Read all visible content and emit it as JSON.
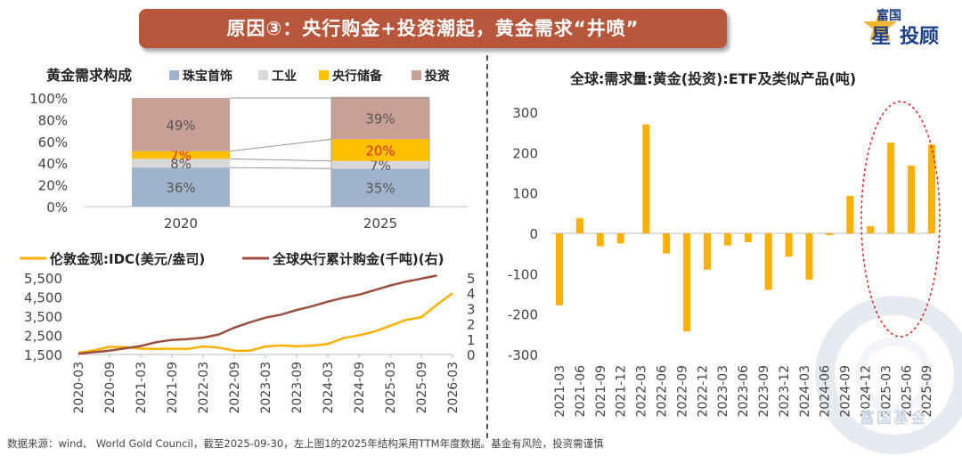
{
  "banner": {
    "title": "原因③：央行购金+投资潮起，黄金需求“井喷”"
  },
  "logo": {
    "line1": "富国",
    "line2a": "星",
    "line2b": "投顾"
  },
  "watermark": {
    "text": "富国基金"
  },
  "footer": {
    "text": "数据来源：wind、 World Gold Council，截至2025-09-30，左上图1的2025年结构采用TTM年度数据。基金有风险，投资需谨慎"
  },
  "colors": {
    "banner": "#b8563b",
    "jewelry": "#9fb4cc",
    "industry": "#d9d9d9",
    "central_bank": "#ffc000",
    "investment": "#c9a096",
    "gold_price": "#ffb000",
    "cb_cumulative": "#9b4f3d",
    "etf": "#ffb000",
    "highlight": "#e02020"
  },
  "chart_data": [
    {
      "id": "demand-structure",
      "type": "bar",
      "stacked": true,
      "title": "黄金需求构成",
      "categories": [
        "2020",
        "2025"
      ],
      "series": [
        {
          "name": "珠宝首饰",
          "values": [
            36,
            35
          ],
          "labels": [
            "36%",
            "35%"
          ]
        },
        {
          "name": "工业",
          "values": [
            8,
            7
          ],
          "labels": [
            "8%",
            "7%"
          ]
        },
        {
          "name": "央行储备",
          "values": [
            7,
            20
          ],
          "labels": [
            "7%",
            "20%"
          ]
        },
        {
          "name": "投资",
          "values": [
            49,
            39
          ],
          "labels": [
            "49%",
            "39%"
          ]
        }
      ],
      "yticks": [
        "0%",
        "20%",
        "40%",
        "60%",
        "80%",
        "100%"
      ],
      "ylim": [
        0,
        100
      ]
    },
    {
      "id": "price-vs-cb",
      "type": "line",
      "legend": [
        "伦敦金现:IDC(美元/盎司)",
        "全球央行累计购金(千吨)(右)"
      ],
      "x": [
        "2020-03",
        "2020-09",
        "2021-03",
        "2021-09",
        "2022-03",
        "2022-09",
        "2023-03",
        "2023-09",
        "2024-03",
        "2024-09",
        "2025-03",
        "2025-09",
        "2026-03"
      ],
      "left_axis": {
        "ticks": [
          "1,500",
          "2,500",
          "3,500",
          "4,500",
          "5,500"
        ],
        "range": [
          1500,
          5500
        ]
      },
      "right_axis": {
        "ticks": [
          "0",
          "1",
          "2",
          "3",
          "4",
          "5"
        ],
        "range": [
          0,
          5
        ]
      },
      "series": [
        {
          "name": "伦敦金现:IDC(美元/盎司)",
          "axis": "left",
          "points": [
            [
              0,
              1590
            ],
            [
              0.5,
              1720
            ],
            [
              1,
              1900
            ],
            [
              1.5,
              1880
            ],
            [
              2,
              1800
            ],
            [
              2.5,
              1790
            ],
            [
              3,
              1800
            ],
            [
              3.5,
              1790
            ],
            [
              4,
              1920
            ],
            [
              4.5,
              1860
            ],
            [
              5,
              1700
            ],
            [
              5.5,
              1700
            ],
            [
              6,
              1920
            ],
            [
              6.5,
              1970
            ],
            [
              7,
              1930
            ],
            [
              7.5,
              1960
            ],
            [
              8,
              2050
            ],
            [
              8.5,
              2350
            ],
            [
              9,
              2500
            ],
            [
              9.5,
              2700
            ],
            [
              10,
              3000
            ],
            [
              10.5,
              3300
            ],
            [
              11,
              3450
            ],
            [
              11.5,
              4100
            ],
            [
              12,
              4700
            ]
          ]
        },
        {
          "name": "全球央行累计购金(千吨)(右)",
          "axis": "right",
          "points": [
            [
              0,
              0.05
            ],
            [
              0.5,
              0.15
            ],
            [
              1,
              0.25
            ],
            [
              1.5,
              0.4
            ],
            [
              2,
              0.55
            ],
            [
              2.5,
              0.8
            ],
            [
              3,
              0.95
            ],
            [
              3.5,
              1.0
            ],
            [
              4,
              1.1
            ],
            [
              4.5,
              1.3
            ],
            [
              5,
              1.75
            ],
            [
              5.5,
              2.1
            ],
            [
              6,
              2.4
            ],
            [
              6.5,
              2.6
            ],
            [
              7,
              2.9
            ],
            [
              7.5,
              3.15
            ],
            [
              8,
              3.45
            ],
            [
              8.5,
              3.7
            ],
            [
              9,
              3.9
            ],
            [
              9.5,
              4.2
            ],
            [
              10,
              4.5
            ],
            [
              10.5,
              4.75
            ],
            [
              11,
              4.95
            ],
            [
              11.5,
              5.15
            ]
          ]
        }
      ]
    },
    {
      "id": "etf-demand",
      "type": "bar",
      "title": "全球:需求量:黄金(投资):ETF及类似产品(吨)",
      "categories": [
        "2021-03",
        "2021-06",
        "2021-09",
        "2021-12",
        "2022-03",
        "2022-06",
        "2022-09",
        "2022-12",
        "2023-03",
        "2023-06",
        "2023-09",
        "2023-12",
        "2024-03",
        "2024-06",
        "2024-09",
        "2024-12",
        "2025-03",
        "2025-06",
        "2025-09"
      ],
      "tick_labels": [
        "2021-03",
        "2021-06",
        "2021-09",
        "2021-12",
        "2022-03",
        "2022-06",
        "2022-09",
        "2022-12",
        "2023-03",
        "2023-06",
        "2023-09",
        "2023-12",
        "2024-03",
        "2024-06",
        "2024-09",
        "2024-12",
        "2025-03",
        "2025-06",
        "2025-09"
      ],
      "bars": [
        {
          "pos": 0,
          "value": -178
        },
        {
          "pos": 1,
          "value": 38
        },
        {
          "pos": 2,
          "value": -32
        },
        {
          "pos": 3,
          "value": -25
        },
        {
          "pos": 4.25,
          "value": 270
        },
        {
          "pos": 5.25,
          "value": -50
        },
        {
          "pos": 6.25,
          "value": -243
        },
        {
          "pos": 7.25,
          "value": -90
        },
        {
          "pos": 8.25,
          "value": -30
        },
        {
          "pos": 9.25,
          "value": -22
        },
        {
          "pos": 10.25,
          "value": -140
        },
        {
          "pos": 11.25,
          "value": -58
        },
        {
          "pos": 12.25,
          "value": -115
        },
        {
          "pos": 13.25,
          "value": -5
        },
        {
          "pos": 14.25,
          "value": 93
        },
        {
          "pos": 15.25,
          "value": 18
        },
        {
          "pos": 16.25,
          "value": 225
        },
        {
          "pos": 17.25,
          "value": 168
        },
        {
          "pos": 18.25,
          "value": 220
        }
      ],
      "yticks": [
        "300",
        "200",
        "100",
        "0",
        "-100",
        "-200",
        "-300"
      ],
      "ylim": [
        -300,
        300
      ]
    }
  ]
}
